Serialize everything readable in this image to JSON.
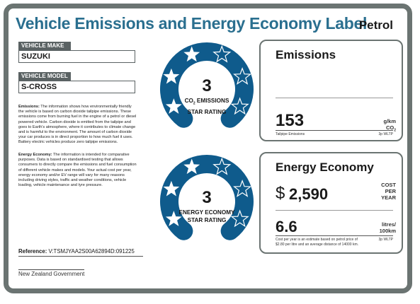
{
  "header": {
    "title": "Vehicle Emissions and Energy Economy Label",
    "fuel_type": "Petrol"
  },
  "vehicle": {
    "make_label": "VEHICLE MAKE",
    "make_value": "SUZUKI",
    "model_label": "VEHICLE MODEL",
    "model_value": "S-CROSS"
  },
  "info": {
    "emissions_heading": "Emissions:",
    "emissions_text": "The information shows how environmentally friendly the vehicle is based on carbon dioxide tailpipe emissions. These emissions come from burning fuel in the engine of a petrol or diesel powered vehicle. Carbon dioxide is emitted from the tailpipe and goes to Earth's atmosphere, where it contributes to climate change and is harmful to the environment. The amount of carbon dioxide your car produces is in direct proportion to how much fuel it uses. Battery electric vehicles produce zero tailpipe emissions.",
    "economy_heading": "Energy Economy:",
    "economy_text": "The information is intended for comparative purposes. Data is based on standardised testing that allows consumers to directly compare the emissions and fuel consumption of different vehicle makes and models. Your actual cost per year, energy economy and/or EV range will vary for many reasons including driving styles, traffic and weather conditions, vehicle loading, vehicle maintenance and tyre pressure."
  },
  "reference": {
    "label": "Reference:",
    "value": "V:TSMJYAA2S00A62894D:091225"
  },
  "government": "New Zealand Government",
  "emissions_rating": {
    "stars": 3,
    "stars_total": 6,
    "caption_line1a": "CO",
    "caption_line1_sub": "2",
    "caption_line1b": " EMISSIONS",
    "caption_line2": "STAR RATING"
  },
  "economy_rating": {
    "stars": 3,
    "stars_total": 6,
    "caption_line1": "ENERGY ECONOMY",
    "caption_line2": "STAR RATING"
  },
  "emissions_panel": {
    "title": "Emissions",
    "value": "153",
    "unit_line1": "g/km",
    "unit_line2a": "CO",
    "unit_line2_sub": "2",
    "footer_left": "Tailpipe Emissions",
    "footer_right": "3p WLTP"
  },
  "economy_panel": {
    "title": "Energy Economy",
    "currency": "$",
    "cost": "2,590",
    "cost_unit_1": "COST",
    "cost_unit_2": "PER",
    "cost_unit_3": "YEAR",
    "fuel_value": "6.6",
    "fuel_unit_1": "litres/",
    "fuel_unit_2": "100km",
    "footer_note": "Cost per year is an estimate based on petrol price of  $2.80 per litre and an average distance of 14000 km.",
    "footer_right": "3p WLTP"
  },
  "colors": {
    "brand_blue": "#0f5b8c",
    "title_blue": "#2a6f8f",
    "frame_grey": "#6b7472"
  }
}
